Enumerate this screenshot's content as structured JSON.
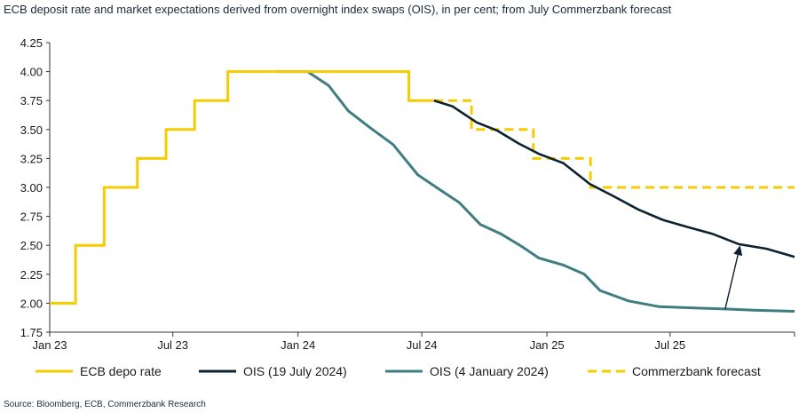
{
  "title": "ECB deposit rate and market expectations derived from overnight index swaps (OIS), in per cent; from July Commerzbank forecast",
  "source": "Source: Bloomberg, ECB, Commerzbank Research",
  "colors": {
    "ecb": "#f5cc00",
    "ois_july": "#0d2230",
    "ois_jan": "#3f7d83",
    "forecast": "#f5cc00"
  },
  "chart_data": {
    "type": "line",
    "ylim": [
      1.75,
      4.25
    ],
    "y_ticks": [
      4.25,
      4.0,
      3.75,
      3.5,
      3.25,
      3.0,
      2.75,
      2.5,
      2.25,
      2.0,
      1.75
    ],
    "y_tick_labels": [
      "4.25",
      "4.00",
      "3.75",
      "3.50",
      "3.25",
      "3.00",
      "2.75",
      "2.50",
      "2.25",
      "2.00",
      "1.75"
    ],
    "xlim": [
      "2023-01-01",
      "2025-12-31"
    ],
    "x_ticks": [
      "2023-01-01",
      "2023-07-01",
      "2024-01-01",
      "2024-07-01",
      "2025-01-01",
      "2025-07-01"
    ],
    "x_tick_labels": [
      "Jan 23",
      "Jul 23",
      "Jan 24",
      "Jul 24",
      "Jan 25",
      "Jul 25"
    ],
    "grid": false,
    "legend_position": "bottom",
    "series": [
      {
        "name": "ECB depo rate",
        "style": "solid",
        "step": true,
        "x": [
          "2023-01-01",
          "2023-02-08",
          "2023-03-22",
          "2023-05-10",
          "2023-06-21",
          "2023-08-02",
          "2023-09-20",
          "2024-06-12",
          "2024-07-19"
        ],
        "y": [
          2.0,
          2.5,
          3.0,
          3.25,
          3.5,
          3.75,
          4.0,
          3.75,
          3.75
        ]
      },
      {
        "name": "OIS (19 July 2024)",
        "style": "solid",
        "x": [
          "2024-07-19",
          "2024-08-15",
          "2024-09-20",
          "2024-10-20",
          "2024-11-20",
          "2024-12-20",
          "2025-01-25",
          "2025-03-05",
          "2025-04-10",
          "2025-05-15",
          "2025-06-20",
          "2025-07-25",
          "2025-09-01",
          "2025-10-10",
          "2025-11-20",
          "2025-12-31"
        ],
        "y": [
          3.75,
          3.7,
          3.56,
          3.49,
          3.38,
          3.29,
          3.21,
          3.03,
          2.92,
          2.81,
          2.72,
          2.66,
          2.6,
          2.51,
          2.47,
          2.4
        ]
      },
      {
        "name": "OIS (4 January 2024)",
        "style": "solid",
        "x": [
          "2023-12-01",
          "2024-01-15",
          "2024-02-15",
          "2024-03-15",
          "2024-04-15",
          "2024-05-20",
          "2024-06-25",
          "2024-07-25",
          "2024-08-25",
          "2024-09-25",
          "2024-10-25",
          "2024-11-25",
          "2024-12-20",
          "2025-01-25",
          "2025-02-25",
          "2025-03-20",
          "2025-05-01",
          "2025-06-15",
          "2025-08-01",
          "2025-09-20",
          "2025-11-01",
          "2025-12-31"
        ],
        "y": [
          4.0,
          4.0,
          3.88,
          3.66,
          3.52,
          3.37,
          3.11,
          2.99,
          2.87,
          2.68,
          2.6,
          2.49,
          2.39,
          2.33,
          2.25,
          2.11,
          2.02,
          1.97,
          1.96,
          1.95,
          1.94,
          1.93
        ]
      },
      {
        "name": "Commerzbank forecast",
        "style": "dashed",
        "step": true,
        "x": [
          "2024-07-19",
          "2024-09-12",
          "2024-10-17",
          "2024-12-12",
          "2025-01-30",
          "2025-03-06",
          "2025-12-31"
        ],
        "y": [
          3.75,
          3.5,
          3.5,
          3.25,
          3.25,
          3.0,
          3.0
        ]
      }
    ],
    "annotations": [
      {
        "type": "arrow",
        "from": [
          "2025-09-20",
          1.95
        ],
        "to": [
          "2025-10-12",
          2.5
        ]
      }
    ]
  },
  "legend": {
    "items": [
      {
        "label": "ECB depo rate",
        "style": "solid",
        "color_key": "ecb"
      },
      {
        "label": "OIS (19 July 2024)",
        "style": "solid",
        "color_key": "ois_july"
      },
      {
        "label": "OIS (4 January 2024)",
        "style": "solid",
        "color_key": "ois_jan"
      },
      {
        "label": "Commerzbank forecast",
        "style": "dashed",
        "color_key": "forecast"
      }
    ]
  }
}
